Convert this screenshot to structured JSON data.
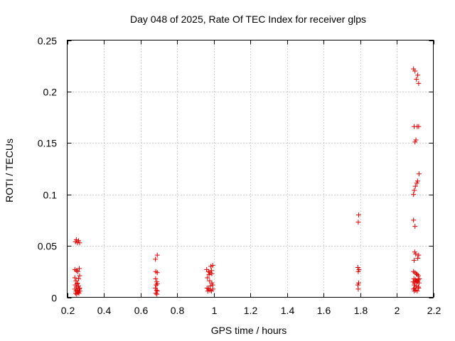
{
  "chart_data": {
    "type": "scatter",
    "title": "Day 048 of 2025, Rate Of TEC Index for receiver glps",
    "xlabel": "GPS time / hours",
    "ylabel": "ROTI / TECUs",
    "xlim": [
      0.2,
      2.2
    ],
    "ylim": [
      0,
      0.25
    ],
    "xticks": [
      0.2,
      0.4,
      0.6,
      0.8,
      1.0,
      1.2,
      1.4,
      1.6,
      1.8,
      2.0,
      2.2
    ],
    "xtick_labels": [
      "0.2",
      "0.4",
      "0.6",
      "0.8",
      "1",
      "1.2",
      "1.4",
      "1.6",
      "1.8",
      "2",
      "2.2"
    ],
    "yticks": [
      0,
      0.05,
      0.1,
      0.15,
      0.2,
      0.25
    ],
    "ytick_labels": [
      "0",
      "0.05",
      "0.1",
      "0.15",
      "0.2",
      "0.25"
    ],
    "grid": true,
    "marker": "plus",
    "color": "#dd0000",
    "series": [
      {
        "name": "ROTI",
        "points": [
          [
            0.242,
            0.027
          ],
          [
            0.25,
            0.026
          ],
          [
            0.258,
            0.025
          ],
          [
            0.266,
            0.028
          ],
          [
            0.245,
            0.054
          ],
          [
            0.25,
            0.056
          ],
          [
            0.256,
            0.053
          ],
          [
            0.262,
            0.055
          ],
          [
            0.268,
            0.053
          ],
          [
            0.242,
            0.019
          ],
          [
            0.248,
            0.016
          ],
          [
            0.255,
            0.014
          ],
          [
            0.262,
            0.018
          ],
          [
            0.268,
            0.021
          ],
          [
            0.244,
            0.012
          ],
          [
            0.25,
            0.01
          ],
          [
            0.256,
            0.013
          ],
          [
            0.262,
            0.011
          ],
          [
            0.268,
            0.009
          ],
          [
            0.242,
            0.008
          ],
          [
            0.248,
            0.006
          ],
          [
            0.254,
            0.007
          ],
          [
            0.26,
            0.005
          ],
          [
            0.266,
            0.008
          ],
          [
            0.246,
            0.004
          ],
          [
            0.252,
            0.003
          ],
          [
            0.258,
            0.005
          ],
          [
            0.264,
            0.004
          ],
          [
            0.27,
            0.006
          ],
          [
            0.682,
            0.037
          ],
          [
            0.692,
            0.041
          ],
          [
            0.684,
            0.025
          ],
          [
            0.692,
            0.024
          ],
          [
            0.683,
            0.018
          ],
          [
            0.69,
            0.015
          ],
          [
            0.686,
            0.012
          ],
          [
            0.692,
            0.013
          ],
          [
            0.682,
            0.009
          ],
          [
            0.688,
            0.007
          ],
          [
            0.692,
            0.006
          ],
          [
            0.684,
            0.004
          ],
          [
            0.69,
            0.003
          ],
          [
            0.962,
            0.027
          ],
          [
            0.972,
            0.025
          ],
          [
            0.98,
            0.024
          ],
          [
            0.988,
            0.026
          ],
          [
            0.975,
            0.022
          ],
          [
            0.985,
            0.03
          ],
          [
            0.995,
            0.031
          ],
          [
            0.99,
            0.023
          ],
          [
            0.966,
            0.019
          ],
          [
            0.978,
            0.016
          ],
          [
            0.99,
            0.014
          ],
          [
            0.995,
            0.012
          ],
          [
            0.982,
            0.011
          ],
          [
            0.964,
            0.009
          ],
          [
            0.972,
            0.008
          ],
          [
            0.98,
            0.007
          ],
          [
            0.988,
            0.006
          ],
          [
            0.996,
            0.008
          ],
          [
            0.968,
            0.006
          ],
          [
            1.792,
            0.08
          ],
          [
            1.79,
            0.073
          ],
          [
            1.788,
            0.029
          ],
          [
            1.794,
            0.027
          ],
          [
            1.79,
            0.025
          ],
          [
            1.792,
            0.014
          ],
          [
            1.788,
            0.012
          ],
          [
            1.79,
            0.008
          ],
          [
            2.092,
            0.222
          ],
          [
            2.1,
            0.22
          ],
          [
            2.108,
            0.212
          ],
          [
            2.115,
            0.216
          ],
          [
            2.12,
            0.208
          ],
          [
            2.095,
            0.166
          ],
          [
            2.112,
            0.166
          ],
          [
            2.12,
            0.166
          ],
          [
            2.1,
            0.151
          ],
          [
            2.105,
            0.153
          ],
          [
            2.122,
            0.12
          ],
          [
            2.102,
            0.108
          ],
          [
            2.11,
            0.111
          ],
          [
            2.114,
            0.113
          ],
          [
            2.096,
            0.104
          ],
          [
            2.092,
            0.1
          ],
          [
            2.092,
            0.075
          ],
          [
            2.1,
            0.069
          ],
          [
            2.098,
            0.044
          ],
          [
            2.104,
            0.042
          ],
          [
            2.12,
            0.041
          ],
          [
            2.115,
            0.038
          ],
          [
            2.095,
            0.036
          ],
          [
            2.092,
            0.025
          ],
          [
            2.1,
            0.024
          ],
          [
            2.108,
            0.023
          ],
          [
            2.118,
            0.021
          ],
          [
            2.112,
            0.022
          ],
          [
            2.094,
            0.018
          ],
          [
            2.102,
            0.017
          ],
          [
            2.11,
            0.016
          ],
          [
            2.118,
            0.017
          ],
          [
            2.124,
            0.018
          ],
          [
            2.09,
            0.015
          ],
          [
            2.098,
            0.014
          ],
          [
            2.106,
            0.016
          ],
          [
            2.114,
            0.015
          ],
          [
            2.122,
            0.014
          ],
          [
            2.096,
            0.012
          ],
          [
            2.108,
            0.011
          ],
          [
            2.118,
            0.01
          ],
          [
            2.1,
            0.009
          ],
          [
            2.092,
            0.008
          ],
          [
            2.104,
            0.007
          ],
          [
            2.112,
            0.006
          ],
          [
            2.12,
            0.009
          ],
          [
            2.096,
            0.006
          ]
        ]
      }
    ]
  }
}
